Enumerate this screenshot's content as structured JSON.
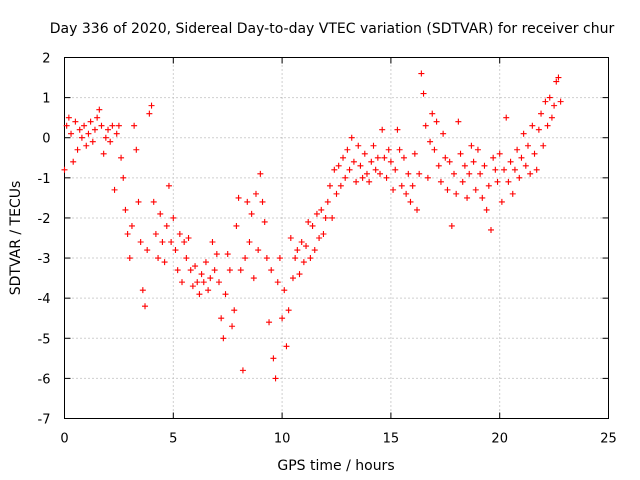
{
  "chart_data": {
    "type": "scatter",
    "title": "Day 336 of 2020, Sidereal Day-to-day VTEC variation (SDTVAR) for receiver chur",
    "xlabel": "GPS time / hours",
    "ylabel": "SDTVAR / TECUs",
    "xlim": [
      0,
      25
    ],
    "ylim": [
      -7,
      2
    ],
    "xticks": [
      "0",
      "5",
      "10",
      "15",
      "20",
      "25"
    ],
    "yticks": [
      "-7",
      "-6",
      "-5",
      "-4",
      "-3",
      "-2",
      "-1",
      "0",
      "1",
      "2"
    ],
    "grid": true,
    "marker": "+",
    "series": [
      {
        "name": "SDTVAR",
        "color": "#ff0000",
        "points": [
          [
            0.0,
            -0.8
          ],
          [
            0.1,
            0.3
          ],
          [
            0.2,
            0.5
          ],
          [
            0.3,
            0.1
          ],
          [
            0.4,
            -0.6
          ],
          [
            0.5,
            0.4
          ],
          [
            0.6,
            -0.3
          ],
          [
            0.7,
            0.2
          ],
          [
            0.8,
            0.0
          ],
          [
            0.9,
            0.3
          ],
          [
            1.0,
            -0.2
          ],
          [
            1.1,
            0.1
          ],
          [
            1.2,
            0.4
          ],
          [
            1.3,
            -0.1
          ],
          [
            1.4,
            0.2
          ],
          [
            1.5,
            0.5
          ],
          [
            1.6,
            0.7
          ],
          [
            1.7,
            0.3
          ],
          [
            1.8,
            -0.4
          ],
          [
            1.9,
            0.0
          ],
          [
            2.0,
            0.2
          ],
          [
            2.1,
            -0.1
          ],
          [
            2.2,
            0.3
          ],
          [
            2.3,
            -1.3
          ],
          [
            2.4,
            0.1
          ],
          [
            2.5,
            0.3
          ],
          [
            2.6,
            -0.5
          ],
          [
            2.7,
            -1.0
          ],
          [
            2.8,
            -1.8
          ],
          [
            2.9,
            -2.4
          ],
          [
            3.0,
            -3.0
          ],
          [
            3.1,
            -2.2
          ],
          [
            3.2,
            0.3
          ],
          [
            3.3,
            -0.3
          ],
          [
            3.4,
            -1.6
          ],
          [
            3.5,
            -2.6
          ],
          [
            3.6,
            -3.8
          ],
          [
            3.7,
            -4.2
          ],
          [
            3.8,
            -2.8
          ],
          [
            3.9,
            0.6
          ],
          [
            4.0,
            0.8
          ],
          [
            4.1,
            -1.6
          ],
          [
            4.2,
            -2.4
          ],
          [
            4.3,
            -3.0
          ],
          [
            4.4,
            -1.9
          ],
          [
            4.5,
            -2.6
          ],
          [
            4.6,
            -3.1
          ],
          [
            4.7,
            -2.2
          ],
          [
            4.8,
            -1.2
          ],
          [
            4.9,
            -2.6
          ],
          [
            5.0,
            -2.0
          ],
          [
            5.1,
            -2.8
          ],
          [
            5.2,
            -3.3
          ],
          [
            5.3,
            -2.4
          ],
          [
            5.4,
            -3.6
          ],
          [
            5.5,
            -2.6
          ],
          [
            5.6,
            -3.0
          ],
          [
            5.7,
            -2.5
          ],
          [
            5.8,
            -3.3
          ],
          [
            5.9,
            -3.7
          ],
          [
            6.0,
            -3.2
          ],
          [
            6.1,
            -3.6
          ],
          [
            6.2,
            -3.9
          ],
          [
            6.3,
            -3.4
          ],
          [
            6.4,
            -3.6
          ],
          [
            6.5,
            -3.1
          ],
          [
            6.6,
            -3.8
          ],
          [
            6.7,
            -3.5
          ],
          [
            6.8,
            -2.6
          ],
          [
            6.9,
            -3.3
          ],
          [
            7.0,
            -2.9
          ],
          [
            7.1,
            -3.6
          ],
          [
            7.2,
            -4.5
          ],
          [
            7.3,
            -5.0
          ],
          [
            7.4,
            -3.9
          ],
          [
            7.5,
            -2.9
          ],
          [
            7.6,
            -3.3
          ],
          [
            7.7,
            -4.7
          ],
          [
            7.8,
            -4.3
          ],
          [
            7.9,
            -2.2
          ],
          [
            8.0,
            -1.5
          ],
          [
            8.1,
            -3.3
          ],
          [
            8.2,
            -5.8
          ],
          [
            8.3,
            -3.0
          ],
          [
            8.4,
            -1.6
          ],
          [
            8.5,
            -2.6
          ],
          [
            8.6,
            -1.9
          ],
          [
            8.7,
            -3.5
          ],
          [
            8.8,
            -1.4
          ],
          [
            8.9,
            -2.8
          ],
          [
            9.0,
            -0.9
          ],
          [
            9.1,
            -1.6
          ],
          [
            9.2,
            -2.1
          ],
          [
            9.3,
            -3.0
          ],
          [
            9.4,
            -4.6
          ],
          [
            9.5,
            -3.3
          ],
          [
            9.6,
            -5.5
          ],
          [
            9.7,
            -6.0
          ],
          [
            9.8,
            -3.6
          ],
          [
            9.9,
            -3.0
          ],
          [
            10.0,
            -4.5
          ],
          [
            10.1,
            -3.8
          ],
          [
            10.2,
            -5.2
          ],
          [
            10.3,
            -4.3
          ],
          [
            10.4,
            -2.5
          ],
          [
            10.5,
            -3.5
          ],
          [
            10.6,
            -3.0
          ],
          [
            10.7,
            -2.8
          ],
          [
            10.8,
            -3.4
          ],
          [
            10.9,
            -2.6
          ],
          [
            11.0,
            -3.1
          ],
          [
            11.1,
            -2.7
          ],
          [
            11.2,
            -2.1
          ],
          [
            11.3,
            -3.0
          ],
          [
            11.4,
            -2.2
          ],
          [
            11.5,
            -2.8
          ],
          [
            11.6,
            -1.9
          ],
          [
            11.7,
            -2.5
          ],
          [
            11.8,
            -1.8
          ],
          [
            11.9,
            -2.4
          ],
          [
            12.0,
            -2.0
          ],
          [
            12.1,
            -1.6
          ],
          [
            12.2,
            -1.2
          ],
          [
            12.3,
            -2.0
          ],
          [
            12.4,
            -0.8
          ],
          [
            12.5,
            -1.4
          ],
          [
            12.6,
            -0.7
          ],
          [
            12.7,
            -1.2
          ],
          [
            12.8,
            -0.5
          ],
          [
            12.9,
            -1.0
          ],
          [
            13.0,
            -0.3
          ],
          [
            13.1,
            -0.8
          ],
          [
            13.2,
            0.0
          ],
          [
            13.3,
            -0.6
          ],
          [
            13.4,
            -1.1
          ],
          [
            13.5,
            -0.2
          ],
          [
            13.6,
            -0.7
          ],
          [
            13.7,
            -1.0
          ],
          [
            13.8,
            -0.4
          ],
          [
            13.9,
            -0.9
          ],
          [
            14.0,
            -1.1
          ],
          [
            14.1,
            -0.6
          ],
          [
            14.2,
            -0.2
          ],
          [
            14.3,
            -0.8
          ],
          [
            14.4,
            -0.5
          ],
          [
            14.5,
            -0.9
          ],
          [
            14.6,
            0.2
          ],
          [
            14.7,
            -0.5
          ],
          [
            14.8,
            -1.0
          ],
          [
            14.9,
            -0.3
          ],
          [
            15.0,
            -0.6
          ],
          [
            15.1,
            -1.3
          ],
          [
            15.2,
            -0.8
          ],
          [
            15.3,
            0.2
          ],
          [
            15.4,
            -0.3
          ],
          [
            15.5,
            -1.2
          ],
          [
            15.6,
            -0.5
          ],
          [
            15.7,
            -1.4
          ],
          [
            15.8,
            -0.9
          ],
          [
            15.9,
            -1.6
          ],
          [
            16.0,
            -1.2
          ],
          [
            16.1,
            -0.4
          ],
          [
            16.2,
            -1.8
          ],
          [
            16.3,
            -0.9
          ],
          [
            16.4,
            1.6
          ],
          [
            16.5,
            1.1
          ],
          [
            16.6,
            0.3
          ],
          [
            16.7,
            -1.0
          ],
          [
            16.8,
            -0.1
          ],
          [
            16.9,
            0.6
          ],
          [
            17.0,
            -0.3
          ],
          [
            17.1,
            0.4
          ],
          [
            17.2,
            -0.7
          ],
          [
            17.3,
            -1.1
          ],
          [
            17.4,
            0.1
          ],
          [
            17.5,
            -0.5
          ],
          [
            17.6,
            -1.3
          ],
          [
            17.7,
            -0.6
          ],
          [
            17.8,
            -2.2
          ],
          [
            17.9,
            -0.9
          ],
          [
            18.0,
            -1.4
          ],
          [
            18.1,
            0.4
          ],
          [
            18.2,
            -0.4
          ],
          [
            18.3,
            -1.1
          ],
          [
            18.4,
            -0.7
          ],
          [
            18.5,
            -1.5
          ],
          [
            18.6,
            -0.9
          ],
          [
            18.7,
            -0.2
          ],
          [
            18.8,
            -0.6
          ],
          [
            18.9,
            -1.3
          ],
          [
            19.0,
            -0.3
          ],
          [
            19.1,
            -0.9
          ],
          [
            19.2,
            -1.5
          ],
          [
            19.3,
            -0.7
          ],
          [
            19.4,
            -1.8
          ],
          [
            19.5,
            -1.2
          ],
          [
            19.6,
            -2.3
          ],
          [
            19.7,
            -0.5
          ],
          [
            19.8,
            -0.8
          ],
          [
            19.9,
            -1.1
          ],
          [
            20.0,
            -0.4
          ],
          [
            20.1,
            -1.6
          ],
          [
            20.2,
            -0.8
          ],
          [
            20.3,
            0.5
          ],
          [
            20.4,
            -1.1
          ],
          [
            20.5,
            -0.6
          ],
          [
            20.6,
            -1.4
          ],
          [
            20.7,
            -0.8
          ],
          [
            20.8,
            -0.3
          ],
          [
            20.9,
            -1.0
          ],
          [
            21.0,
            -0.5
          ],
          [
            21.1,
            0.1
          ],
          [
            21.2,
            -0.7
          ],
          [
            21.3,
            -0.2
          ],
          [
            21.4,
            -0.9
          ],
          [
            21.5,
            0.3
          ],
          [
            21.6,
            -0.4
          ],
          [
            21.7,
            -0.8
          ],
          [
            21.8,
            0.2
          ],
          [
            21.9,
            0.6
          ],
          [
            22.0,
            -0.2
          ],
          [
            22.1,
            0.9
          ],
          [
            22.2,
            0.3
          ],
          [
            22.3,
            1.0
          ],
          [
            22.4,
            0.5
          ],
          [
            22.5,
            0.8
          ],
          [
            22.6,
            1.4
          ],
          [
            22.7,
            1.5
          ],
          [
            22.8,
            0.9
          ]
        ]
      }
    ]
  }
}
